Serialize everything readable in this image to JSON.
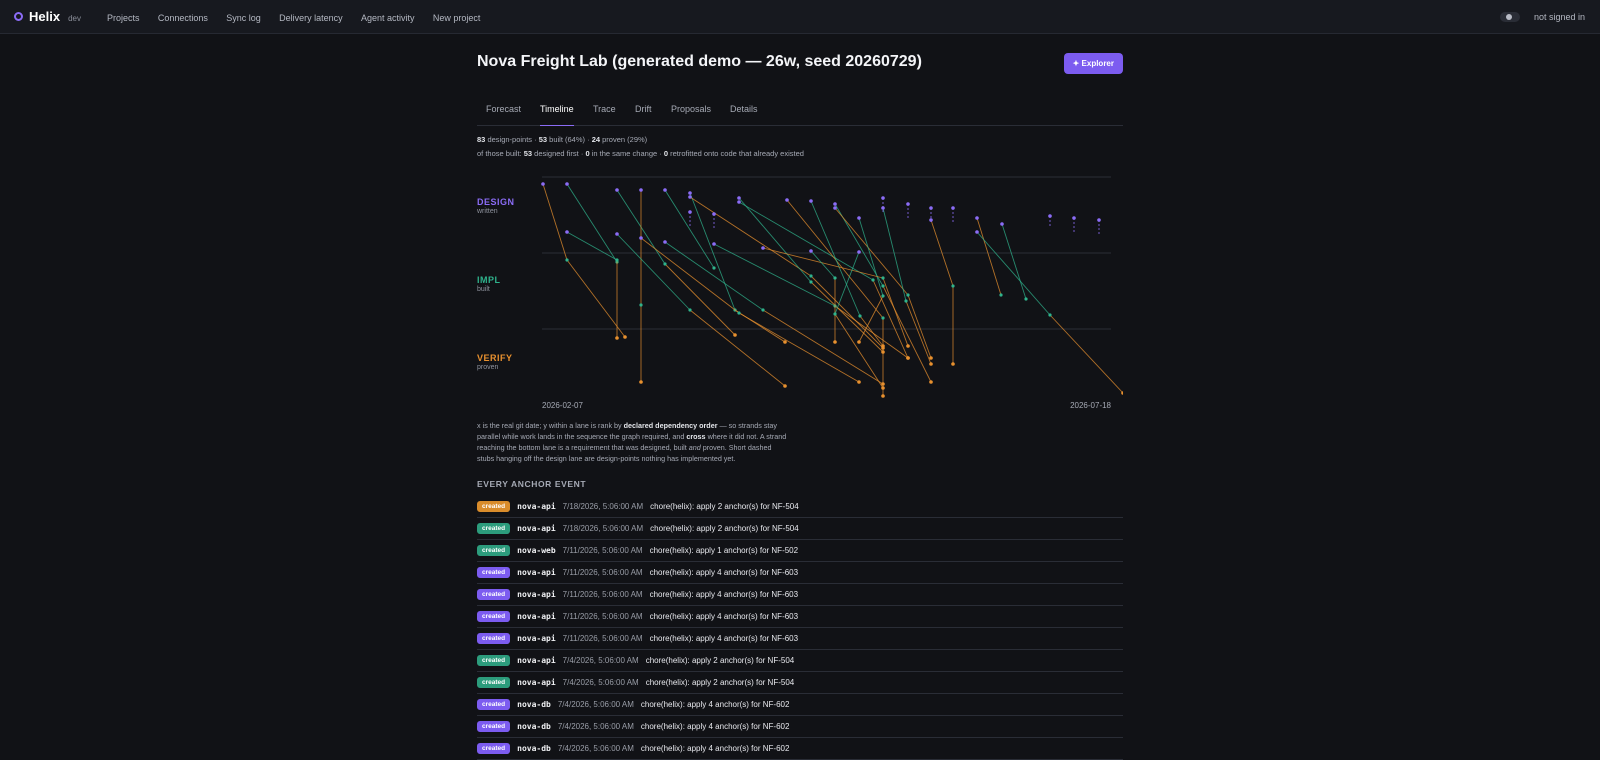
{
  "topbar": {
    "brand": "Helix",
    "env": "dev",
    "nav": [
      "Projects",
      "Connections",
      "Sync log",
      "Delivery latency",
      "Agent activity",
      "New project"
    ],
    "signin": "not signed in"
  },
  "page": {
    "title": "Nova Freight Lab (generated demo — 26w, seed 20260729)",
    "explorer_label": "✦ Explorer"
  },
  "tabs": [
    "Forecast",
    "Timeline",
    "Trace",
    "Drift",
    "Proposals",
    "Details"
  ],
  "stats": {
    "design_points": "83",
    "design_points_label": "design-points",
    "built": "53",
    "built_label": "built (64%)",
    "proven": "24",
    "proven_label": "proven (29%)",
    "line2_prefix": "of those built:",
    "designed_first": "53",
    "designed_first_label": "designed first",
    "same_change": "0",
    "same_change_label": "in the same change",
    "retrofitted": "0",
    "retrofitted_label": "retrofitted onto code that already existed"
  },
  "lanes": {
    "design": {
      "title": "DESIGN",
      "sub": "written",
      "color": "#8b6cf6"
    },
    "impl": {
      "title": "IMPL",
      "sub": "built",
      "color": "#2fb38c"
    },
    "verify": {
      "title": "VERIFY",
      "sub": "proven",
      "color": "#e8902e"
    }
  },
  "chart_data": {
    "type": "timeline",
    "x_start": "2026-02-07",
    "x_end": "2026-07-18",
    "lanes": [
      "DESIGN",
      "IMPL",
      "VERIFY"
    ]
  },
  "explain": {
    "p1": "x is the real git date; y within a lane is rank by",
    "b1": "declared dependency order",
    "p2": "— so strands stay parallel while work lands in the sequence the graph required, and",
    "b2": "cross",
    "p3": "where it did not. A strand reaching the bottom lane is a requirement that was designed, built",
    "i1": "and",
    "p4": "proven. Short dashed stubs hanging off the design lane are design-points nothing has implemented yet."
  },
  "events_title": "EVERY ANCHOR EVENT",
  "events": [
    {
      "badge": "created",
      "color": "orange",
      "repo": "nova-api",
      "ts": "7/18/2026, 5:06:00 AM",
      "msg": "chore(helix): apply 2 anchor(s) for NF-504"
    },
    {
      "badge": "created",
      "color": "green",
      "repo": "nova-api",
      "ts": "7/18/2026, 5:06:00 AM",
      "msg": "chore(helix): apply 2 anchor(s) for NF-504"
    },
    {
      "badge": "created",
      "color": "green",
      "repo": "nova-web",
      "ts": "7/11/2026, 5:06:00 AM",
      "msg": "chore(helix): apply 1 anchor(s) for NF-502"
    },
    {
      "badge": "created",
      "color": "purple",
      "repo": "nova-api",
      "ts": "7/11/2026, 5:06:00 AM",
      "msg": "chore(helix): apply 4 anchor(s) for NF-603"
    },
    {
      "badge": "created",
      "color": "purple",
      "repo": "nova-api",
      "ts": "7/11/2026, 5:06:00 AM",
      "msg": "chore(helix): apply 4 anchor(s) for NF-603"
    },
    {
      "badge": "created",
      "color": "purple",
      "repo": "nova-api",
      "ts": "7/11/2026, 5:06:00 AM",
      "msg": "chore(helix): apply 4 anchor(s) for NF-603"
    },
    {
      "badge": "created",
      "color": "purple",
      "repo": "nova-api",
      "ts": "7/11/2026, 5:06:00 AM",
      "msg": "chore(helix): apply 4 anchor(s) for NF-603"
    },
    {
      "badge": "created",
      "color": "green",
      "repo": "nova-api",
      "ts": "7/4/2026, 5:06:00 AM",
      "msg": "chore(helix): apply 2 anchor(s) for NF-504"
    },
    {
      "badge": "created",
      "color": "green",
      "repo": "nova-api",
      "ts": "7/4/2026, 5:06:00 AM",
      "msg": "chore(helix): apply 2 anchor(s) for NF-504"
    },
    {
      "badge": "created",
      "color": "purple",
      "repo": "nova-db",
      "ts": "7/4/2026, 5:06:00 AM",
      "msg": "chore(helix): apply 4 anchor(s) for NF-602"
    },
    {
      "badge": "created",
      "color": "purple",
      "repo": "nova-db",
      "ts": "7/4/2026, 5:06:00 AM",
      "msg": "chore(helix): apply 4 anchor(s) for NF-602"
    },
    {
      "badge": "created",
      "color": "purple",
      "repo": "nova-db",
      "ts": "7/4/2026, 5:06:00 AM",
      "msg": "chore(helix): apply 4 anchor(s) for NF-602"
    }
  ]
}
